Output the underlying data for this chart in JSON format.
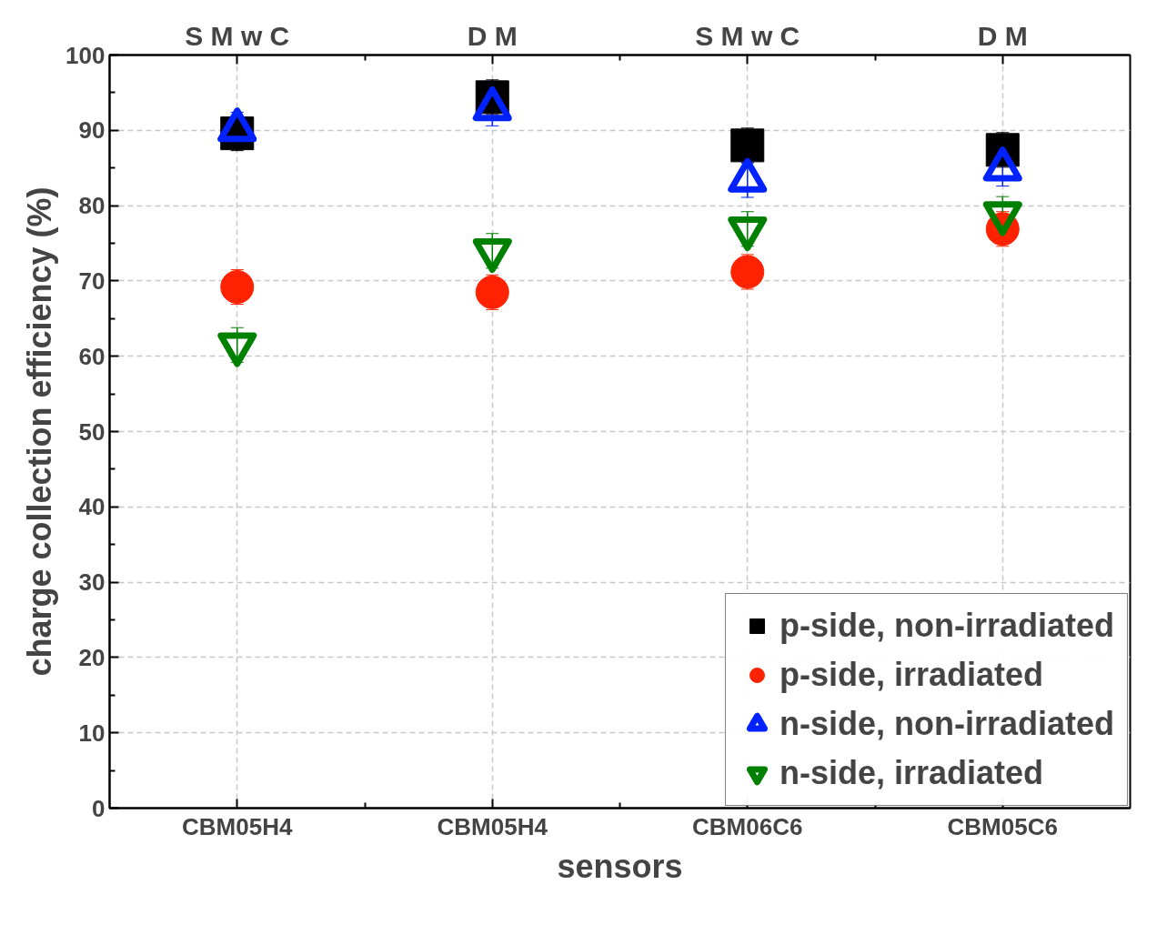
{
  "chart_data": {
    "type": "scatter",
    "xlabel": "sensors",
    "ylabel": "charge collection efficiency (%)",
    "categories": [
      "CBM05H4",
      "CBM05H4",
      "CBM06C6",
      "CBM05C6"
    ],
    "annotations": [
      "S M w C",
      "D M",
      "S M w C",
      "D M"
    ],
    "ylim": [
      0,
      100
    ],
    "yticks": [
      0,
      10,
      20,
      30,
      40,
      50,
      60,
      70,
      80,
      90,
      100
    ],
    "grid": true,
    "legend": "bottom right",
    "series": [
      {
        "name": "p-side, non-irradiated",
        "color": "#000000",
        "marker": "square",
        "values": [
          89.6,
          94.4,
          88.0,
          87.4
        ],
        "errors": [
          2.3,
          2.3,
          2.3,
          2.3
        ]
      },
      {
        "name": "p-side, irradiated",
        "color": "#ff2200",
        "marker": "circle",
        "values": [
          69.2,
          68.5,
          71.2,
          76.9
        ],
        "errors": [
          2.3,
          2.3,
          2.3,
          2.3
        ]
      },
      {
        "name": "n-side, non-irradiated",
        "color": "#0022ff",
        "marker": "triangle",
        "values": [
          90.1,
          92.9,
          83.4,
          84.9
        ],
        "errors": [
          2.3,
          2.3,
          2.3,
          2.3
        ]
      },
      {
        "name": "n-side, irradiated",
        "color": "#008000",
        "marker": "triangle_down",
        "values": [
          61.5,
          74.0,
          76.9,
          78.9
        ],
        "errors": [
          2.3,
          2.3,
          2.3,
          2.3
        ]
      }
    ]
  }
}
